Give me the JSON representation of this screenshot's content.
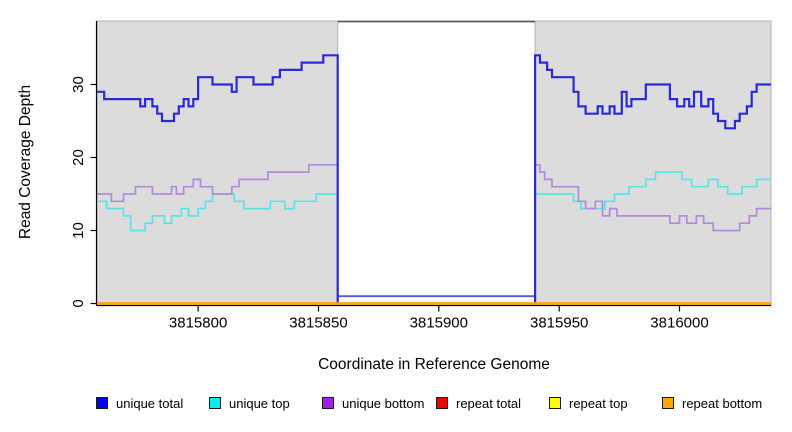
{
  "figure": {
    "xlabel": "Coordinate in Reference Genome",
    "ylabel": "Read Coverage Depth"
  },
  "chart_data": {
    "type": "line",
    "step": true,
    "title": "",
    "xlabel": "Coordinate in Reference Genome",
    "ylabel": "Read Coverage Depth",
    "xlim": [
      3815758,
      3816038
    ],
    "ylim": [
      0,
      38.7
    ],
    "grid": false,
    "legend_position": "bottom",
    "xticks": [
      {
        "value": 3815800,
        "label": "3815800"
      },
      {
        "value": 3815850,
        "label": "3815850"
      },
      {
        "value": 3815900,
        "label": "3815900"
      },
      {
        "value": 3815950,
        "label": "3815950"
      },
      {
        "value": 3816000,
        "label": "3816000"
      }
    ],
    "yticks": [
      {
        "value": 0,
        "label": "0"
      },
      {
        "value": 10,
        "label": "10"
      },
      {
        "value": 20,
        "label": "20"
      },
      {
        "value": 30,
        "label": "30"
      }
    ],
    "shaded_regions": {
      "fill": "#dcdcdc",
      "border": "#b4b4b4",
      "ranges": [
        [
          3815758,
          3815858
        ],
        [
          3815940,
          3816038
        ]
      ]
    },
    "gap_region": {
      "from": 3815858,
      "to": 3815940,
      "fill": "#ffffff",
      "top_border": "#5a5a5a"
    },
    "series": [
      {
        "name": "unique top",
        "color": "#5be3e7",
        "width": 1.7,
        "segments": [
          [
            [
              3815758,
              14
            ],
            [
              3815762,
              13
            ],
            [
              3815769,
              12
            ],
            [
              3815772,
              10
            ],
            [
              3815778,
              11
            ],
            [
              3815781,
              12
            ],
            [
              3815786,
              11
            ],
            [
              3815789,
              12
            ],
            [
              3815793,
              13
            ],
            [
              3815796,
              12
            ],
            [
              3815800,
              13
            ],
            [
              3815803,
              14
            ],
            [
              3815806,
              15
            ],
            [
              3815815,
              14
            ],
            [
              3815819,
              13
            ],
            [
              3815830,
              14
            ],
            [
              3815836,
              13
            ],
            [
              3815840,
              14
            ],
            [
              3815849,
              15
            ],
            [
              3815858,
              15
            ],
            [
              3815858,
              0
            ]
          ],
          [
            [
              3815940,
              0
            ],
            [
              3815940,
              15
            ],
            [
              3815956,
              14
            ],
            [
              3815959,
              13
            ],
            [
              3815969,
              14
            ],
            [
              3815973,
              15
            ],
            [
              3815979,
              16
            ],
            [
              3815986,
              17
            ],
            [
              3815990,
              18
            ],
            [
              3816001,
              17
            ],
            [
              3816005,
              16
            ],
            [
              3816012,
              17
            ],
            [
              3816016,
              16
            ],
            [
              3816020,
              15
            ],
            [
              3816026,
              16
            ],
            [
              3816032,
              17
            ],
            [
              3816038,
              17
            ]
          ]
        ]
      },
      {
        "name": "unique bottom",
        "color": "#b28bdb",
        "width": 1.7,
        "segments": [
          [
            [
              3815758,
              15
            ],
            [
              3815764,
              14
            ],
            [
              3815769,
              15
            ],
            [
              3815774,
              16
            ],
            [
              3815781,
              15
            ],
            [
              3815789,
              16
            ],
            [
              3815791,
              15
            ],
            [
              3815794,
              16
            ],
            [
              3815798,
              17
            ],
            [
              3815801,
              16
            ],
            [
              3815806,
              15
            ],
            [
              3815814,
              16
            ],
            [
              3815817,
              17
            ],
            [
              3815829,
              18
            ],
            [
              3815846,
              19
            ],
            [
              3815858,
              19
            ],
            [
              3815858,
              0
            ]
          ],
          [
            [
              3815940,
              0
            ],
            [
              3815940,
              19
            ],
            [
              3815942,
              18
            ],
            [
              3815944,
              17
            ],
            [
              3815947,
              16
            ],
            [
              3815958,
              14
            ],
            [
              3815961,
              13
            ],
            [
              3815965,
              14
            ],
            [
              3815968,
              12
            ],
            [
              3815971,
              13
            ],
            [
              3815974,
              12
            ],
            [
              3815996,
              11
            ],
            [
              3816000,
              12
            ],
            [
              3816003,
              11
            ],
            [
              3816007,
              12
            ],
            [
              3816010,
              11
            ],
            [
              3816014,
              10
            ],
            [
              3816025,
              11
            ],
            [
              3816029,
              12
            ],
            [
              3816032,
              13
            ],
            [
              3816038,
              13
            ]
          ]
        ]
      },
      {
        "name": "gap baseline",
        "color": "#5f55dc",
        "width": 1.8,
        "segments": [
          [
            [
              3815858,
              1
            ],
            [
              3815940,
              1
            ]
          ]
        ]
      },
      {
        "name": "unique total",
        "color": "#2b2bd5",
        "width": 2.2,
        "segments": [
          [
            [
              3815758,
              29
            ],
            [
              3815761,
              28
            ],
            [
              3815776,
              27
            ],
            [
              3815778,
              28
            ],
            [
              3815781,
              27
            ],
            [
              3815783,
              26
            ],
            [
              3815785,
              25
            ],
            [
              3815790,
              26
            ],
            [
              3815792,
              27
            ],
            [
              3815794,
              28
            ],
            [
              3815796,
              27
            ],
            [
              3815798,
              28
            ],
            [
              3815800,
              31
            ],
            [
              3815806,
              30
            ],
            [
              3815814,
              29
            ],
            [
              3815816,
              31
            ],
            [
              3815823,
              30
            ],
            [
              3815831,
              31
            ],
            [
              3815834,
              32
            ],
            [
              3815843,
              33
            ],
            [
              3815852,
              34
            ],
            [
              3815858,
              34
            ],
            [
              3815858,
              0
            ]
          ],
          [
            [
              3815940,
              0
            ],
            [
              3815940,
              34
            ],
            [
              3815942,
              33
            ],
            [
              3815945,
              32
            ],
            [
              3815947,
              31
            ],
            [
              3815956,
              29
            ],
            [
              3815958,
              27
            ],
            [
              3815961,
              26
            ],
            [
              3815966,
              27
            ],
            [
              3815968,
              26
            ],
            [
              3815971,
              27
            ],
            [
              3815973,
              26
            ],
            [
              3815976,
              29
            ],
            [
              3815978,
              27
            ],
            [
              3815980,
              28
            ],
            [
              3815986,
              30
            ],
            [
              3815996,
              28
            ],
            [
              3815999,
              27
            ],
            [
              3816002,
              28
            ],
            [
              3816004,
              27
            ],
            [
              3816006,
              29
            ],
            [
              3816009,
              27
            ],
            [
              3816012,
              28
            ],
            [
              3816014,
              26
            ],
            [
              3816016,
              25
            ],
            [
              3816019,
              24
            ],
            [
              3816023,
              25
            ],
            [
              3816025,
              26
            ],
            [
              3816028,
              27
            ],
            [
              3816030,
              29
            ],
            [
              3816032,
              30
            ],
            [
              3816038,
              30
            ]
          ]
        ]
      },
      {
        "name": "repeat total",
        "color": "#ee0000",
        "width": 2.2,
        "segments": [
          [
            [
              3815758,
              0
            ],
            [
              3816038,
              0
            ]
          ]
        ]
      },
      {
        "name": "repeat top",
        "color": "#ffff00",
        "width": 2.2,
        "segments": [
          [
            [
              3815758,
              0
            ],
            [
              3816038,
              0
            ]
          ]
        ]
      },
      {
        "name": "repeat bottom",
        "color": "#ffa500",
        "width": 2.2,
        "segments": [
          [
            [
              3815758,
              0
            ],
            [
              3816038,
              0
            ]
          ]
        ]
      }
    ],
    "legend": [
      {
        "label": "unique total",
        "color": "#0000ee"
      },
      {
        "label": "unique top",
        "color": "#00eeee"
      },
      {
        "label": "unique bottom",
        "color": "#a020f0"
      },
      {
        "label": "repeat total",
        "color": "#ee0000"
      },
      {
        "label": "repeat top",
        "color": "#ffff00"
      },
      {
        "label": "repeat bottom",
        "color": "#ffa500"
      }
    ]
  }
}
